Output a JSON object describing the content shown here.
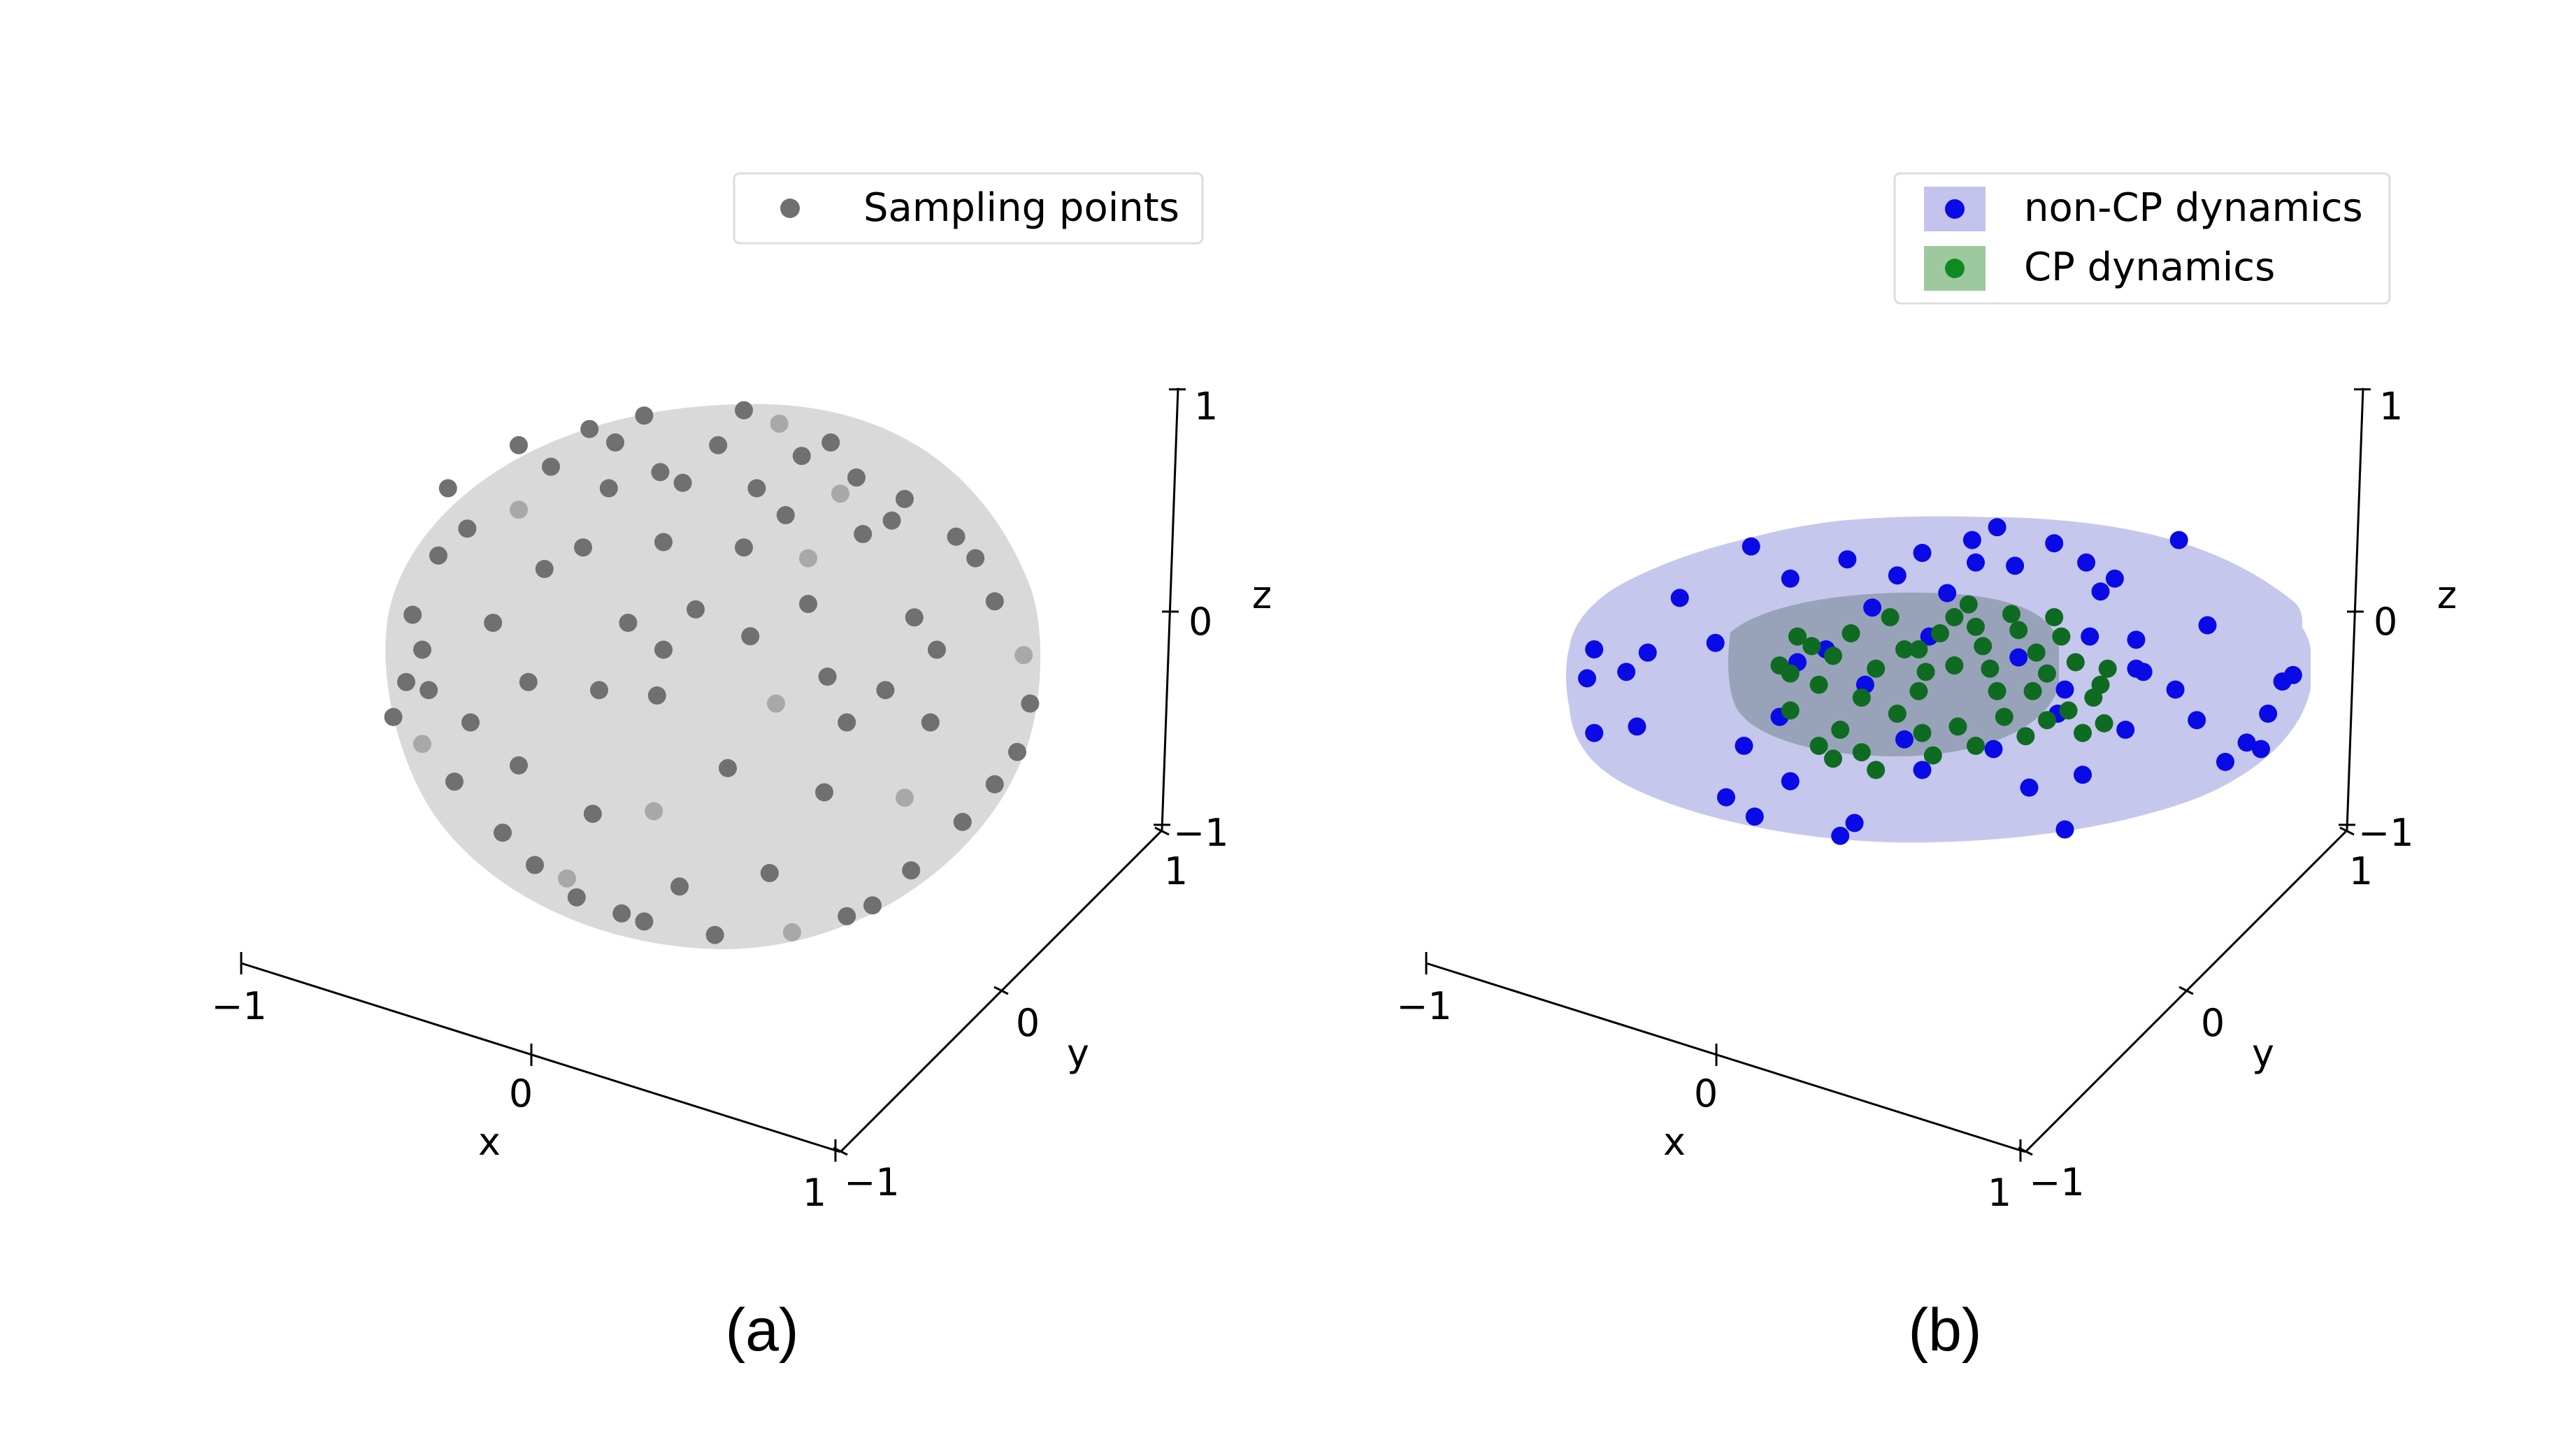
{
  "colors": {
    "sampling_point": "#707070",
    "sampling_point_light": "#a8a8a8",
    "sphere_fill": "#d9d9d9",
    "non_cp_point": "#0a0ae6",
    "non_cp_region": "#b9bbe8",
    "cp_point": "#0f6b22",
    "cp_region": "#8f9fb6",
    "cp_legend_patch": "#9ec99e",
    "non_cp_legend_patch": "#c3c3ed",
    "axis": "#000000"
  },
  "chart_data": [
    {
      "type": "scatter",
      "panel_label": "(a)",
      "projection": "3d",
      "xlabel": "x",
      "ylabel": "y",
      "zlabel": "z",
      "xlim": [
        -1,
        1
      ],
      "ylim": [
        -1,
        1
      ],
      "zlim": [
        -1,
        1
      ],
      "x_ticks": [
        "−1",
        "0",
        "1"
      ],
      "y_ticks": [
        "−1",
        "0",
        "1"
      ],
      "z_ticks": [
        "−1",
        "0",
        "1"
      ],
      "grid": false,
      "legend": {
        "placement": "top-right",
        "entries": [
          {
            "label": "Sampling points",
            "marker": "circle"
          }
        ]
      },
      "surface": {
        "shape": "sphere",
        "radius": 1
      },
      "series": [
        {
          "name": "Sampling points",
          "points_normalized_view": [
            [
              -0.38,
              0.92
            ],
            [
              -0.21,
              0.97
            ],
            [
              0.1,
              0.99
            ],
            [
              0.21,
              0.94
            ],
            [
              0.37,
              0.87
            ],
            [
              -0.5,
              0.78
            ],
            [
              -0.3,
              0.87
            ],
            [
              0.02,
              0.86
            ],
            [
              0.28,
              0.82
            ],
            [
              0.45,
              0.74
            ],
            [
              -0.6,
              0.62
            ],
            [
              -0.76,
              0.55
            ],
            [
              -0.85,
              0.45
            ],
            [
              -0.93,
              0.23
            ],
            [
              -0.9,
              0.1
            ],
            [
              -0.95,
              -0.02
            ],
            [
              -0.99,
              -0.15
            ],
            [
              -0.9,
              -0.25
            ],
            [
              -0.8,
              -0.39
            ],
            [
              -0.65,
              -0.58
            ],
            [
              -0.55,
              -0.7
            ],
            [
              -0.42,
              -0.82
            ],
            [
              -0.21,
              -0.91
            ],
            [
              0.01,
              -0.96
            ],
            [
              0.25,
              -0.95
            ],
            [
              0.42,
              -0.89
            ],
            [
              0.62,
              -0.72
            ],
            [
              0.78,
              -0.54
            ],
            [
              0.88,
              -0.4
            ],
            [
              0.95,
              -0.28
            ],
            [
              0.99,
              -0.1
            ],
            [
              0.97,
              0.08
            ],
            [
              0.88,
              0.28
            ],
            [
              0.76,
              0.52
            ],
            [
              0.6,
              0.66
            ],
            [
              -0.4,
              0.48
            ],
            [
              -0.15,
              0.5
            ],
            [
              0.1,
              0.48
            ],
            [
              0.3,
              0.44
            ],
            [
              0.47,
              0.53
            ],
            [
              -0.26,
              0.2
            ],
            [
              -0.05,
              0.25
            ],
            [
              0.3,
              0.27
            ],
            [
              0.42,
              -0.17
            ],
            [
              0.35,
              -0.43
            ],
            [
              -0.18,
              -0.5
            ],
            [
              -0.37,
              -0.51
            ],
            [
              -0.6,
              -0.33
            ],
            [
              -0.75,
              -0.17
            ],
            [
              -0.57,
              -0.02
            ],
            [
              -0.35,
              -0.05
            ],
            [
              -0.17,
              -0.07
            ],
            [
              0.2,
              -0.1
            ],
            [
              0.36,
              0.0
            ],
            [
              0.54,
              -0.05
            ],
            [
              0.68,
              -0.17
            ],
            [
              0.7,
              0.1
            ],
            [
              0.63,
              0.22
            ],
            [
              0.56,
              0.58
            ],
            [
              0.4,
              0.68
            ],
            [
              -0.32,
              0.7
            ],
            [
              -0.09,
              0.72
            ],
            [
              0.14,
              0.7
            ],
            [
              -0.6,
              0.86
            ],
            [
              -0.16,
              0.76
            ],
            [
              0.23,
              0.6
            ],
            [
              -0.45,
              -0.75
            ],
            [
              -0.1,
              -0.78
            ],
            [
              0.18,
              -0.73
            ],
            [
              -0.68,
              0.2
            ],
            [
              -0.52,
              0.4
            ],
            [
              0.82,
              0.44
            ],
            [
              -0.88,
              -0.05
            ],
            [
              0.6,
              -0.45
            ],
            [
              -0.28,
              -0.88
            ],
            [
              0.5,
              -0.85
            ],
            [
              -0.82,
              0.7
            ],
            [
              0.12,
              0.15
            ],
            [
              -0.15,
              0.1
            ],
            [
              0.05,
              -0.34
            ]
          ]
        }
      ]
    },
    {
      "type": "scatter",
      "panel_label": "(b)",
      "projection": "3d",
      "xlabel": "x",
      "ylabel": "y",
      "zlabel": "z",
      "xlim": [
        -1,
        1
      ],
      "ylim": [
        -1,
        1
      ],
      "zlim": [
        -1,
        1
      ],
      "x_ticks": [
        "−1",
        "0",
        "1"
      ],
      "y_ticks": [
        "−1",
        "0",
        "1"
      ],
      "z_ticks": [
        "−1",
        "0",
        "1"
      ],
      "grid": false,
      "legend": {
        "placement": "top-right",
        "entries": [
          {
            "label": "non-CP dynamics",
            "marker": "circle"
          },
          {
            "label": "CP dynamics",
            "marker": "circle"
          }
        ]
      },
      "surface": [
        {
          "name": "non-CP dynamics",
          "shape": "disk",
          "radius": 1
        },
        {
          "name": "CP dynamics",
          "shape": "disk",
          "radius": 0.5
        }
      ],
      "series": [
        {
          "name": "non-CP dynamics",
          "points_disk_xy": [
            [
              0.96,
              0.0
            ],
            [
              0.99,
              0.04
            ],
            [
              0.92,
              -0.2
            ],
            [
              0.86,
              -0.38
            ],
            [
              0.9,
              -0.42
            ],
            [
              0.75,
              0.35
            ],
            [
              0.72,
              -0.24
            ],
            [
              0.66,
              -0.05
            ],
            [
              0.57,
              0.06
            ],
            [
              0.55,
              0.26
            ],
            [
              0.45,
              0.56
            ],
            [
              0.49,
              0.64
            ],
            [
              0.41,
              0.74
            ],
            [
              0.32,
              0.86
            ],
            [
              0.21,
              0.72
            ],
            [
              0.16,
              0.96
            ],
            [
              0.09,
              0.88
            ],
            [
              0.02,
              0.55
            ],
            [
              -0.05,
              0.8
            ],
            [
              -0.19,
              0.46
            ],
            [
              -0.26,
              0.76
            ],
            [
              -0.42,
              0.64
            ],
            [
              -0.53,
              0.84
            ],
            [
              -0.63,
              0.24
            ],
            [
              -0.73,
              0.52
            ],
            [
              -0.82,
              0.18
            ],
            [
              -0.97,
              0.2
            ],
            [
              -0.99,
              0.02
            ],
            [
              -0.88,
              0.06
            ],
            [
              -0.85,
              -0.28
            ],
            [
              -0.97,
              -0.32
            ],
            [
              -0.55,
              -0.4
            ],
            [
              -0.6,
              -0.72
            ],
            [
              -0.52,
              -0.84
            ],
            [
              -0.42,
              -0.62
            ],
            [
              -0.24,
              -0.88
            ],
            [
              -0.28,
              -0.96
            ],
            [
              -0.05,
              -0.55
            ],
            [
              -0.1,
              -0.36
            ],
            [
              0.15,
              -0.42
            ],
            [
              0.25,
              -0.66
            ],
            [
              0.35,
              -0.92
            ],
            [
              0.4,
              -0.58
            ],
            [
              0.52,
              -0.3
            ],
            [
              0.55,
              0.08
            ],
            [
              0.67,
              0.88
            ],
            [
              0.8,
              -0.5
            ],
            [
              0.42,
              0.28
            ],
            [
              -0.32,
              0.2
            ],
            [
              -0.21,
              -0.02
            ],
            [
              -0.4,
              0.12
            ],
            [
              0.35,
              -0.05
            ],
            [
              -0.03,
              0.28
            ],
            [
              -0.45,
              -0.22
            ],
            [
              0.22,
              0.15
            ],
            [
              0.33,
              -0.2
            ],
            [
              0.1,
              0.74
            ],
            [
              -0.12,
              0.66
            ]
          ]
        },
        {
          "name": "CP dynamics",
          "points_disk_xy": [
            [
              0.47,
              0.08
            ],
            [
              0.45,
              -0.02
            ],
            [
              0.43,
              -0.1
            ],
            [
              0.38,
              0.12
            ],
            [
              0.36,
              -0.18
            ],
            [
              0.3,
              0.05
            ],
            [
              0.3,
              -0.24
            ],
            [
              0.27,
              0.18
            ],
            [
              0.22,
              0.32
            ],
            [
              0.2,
              0.42
            ],
            [
              0.16,
              -0.06
            ],
            [
              0.14,
              0.08
            ],
            [
              0.12,
              0.22
            ],
            [
              0.1,
              0.34
            ],
            [
              0.08,
              0.48
            ],
            [
              0.04,
              0.1
            ],
            [
              0.0,
              0.3
            ],
            [
              -0.04,
              0.06
            ],
            [
              -0.06,
              -0.06
            ],
            [
              -0.1,
              0.2
            ],
            [
              -0.12,
              -0.2
            ],
            [
              -0.14,
              0.4
            ],
            [
              -0.18,
              0.08
            ],
            [
              -0.22,
              -0.1
            ],
            [
              -0.25,
              0.3
            ],
            [
              -0.28,
              -0.3
            ],
            [
              -0.3,
              0.16
            ],
            [
              -0.34,
              -0.02
            ],
            [
              -0.36,
              0.22
            ],
            [
              -0.4,
              0.28
            ],
            [
              -0.42,
              0.05
            ],
            [
              -0.45,
              0.1
            ],
            [
              -0.42,
              -0.18
            ],
            [
              -0.34,
              -0.4
            ],
            [
              -0.3,
              -0.48
            ],
            [
              -0.22,
              -0.44
            ],
            [
              -0.18,
              -0.55
            ],
            [
              -0.05,
              -0.32
            ],
            [
              0.05,
              -0.28
            ],
            [
              0.1,
              -0.4
            ],
            [
              0.18,
              -0.22
            ],
            [
              0.24,
              -0.34
            ],
            [
              0.34,
              0.28
            ],
            [
              0.4,
              -0.32
            ],
            [
              -0.06,
              0.2
            ],
            [
              0.26,
              -0.06
            ],
            [
              0.32,
              0.4
            ],
            [
              -0.02,
              -0.46
            ],
            [
              0.46,
              -0.26
            ],
            [
              0.04,
              0.4
            ]
          ]
        }
      ]
    }
  ]
}
